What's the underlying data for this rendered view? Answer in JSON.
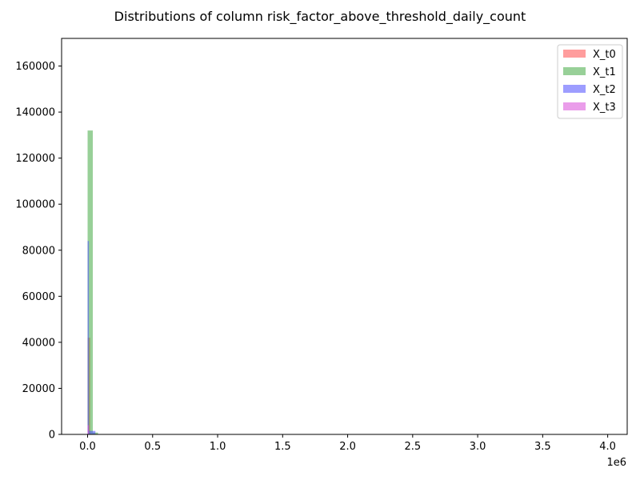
{
  "chart_data": {
    "type": "bar",
    "title": "Distributions of column risk_factor_above_threshold_daily_count",
    "xlabel": "",
    "ylabel": "",
    "x_multiplier_label": "1e6",
    "xlim": [
      -0.2,
      4.15
    ],
    "ylim": [
      0,
      172000
    ],
    "x_ticks": [
      0.0,
      0.5,
      1.0,
      1.5,
      2.0,
      2.5,
      3.0,
      3.5,
      4.0
    ],
    "x_tick_labels": [
      "0.0",
      "0.5",
      "1.0",
      "1.5",
      "2.0",
      "2.5",
      "3.0",
      "3.5",
      "4.0"
    ],
    "y_ticks": [
      0,
      20000,
      40000,
      60000,
      80000,
      100000,
      120000,
      140000,
      160000
    ],
    "y_tick_labels": [
      "0",
      "20000",
      "40000",
      "60000",
      "80000",
      "100000",
      "120000",
      "140000",
      "160000"
    ],
    "grid": false,
    "legend_position": "top-right",
    "series": [
      {
        "name": "X_t0",
        "color": "#ff4d4d",
        "bins": [
          [
            0.0,
            0.02,
            42000
          ]
        ]
      },
      {
        "name": "X_t1",
        "color": "#44aa44",
        "bins": [
          [
            0.0,
            0.04,
            132000
          ],
          [
            0.04,
            0.08,
            800
          ]
        ]
      },
      {
        "name": "X_t2",
        "color": "#4d4dff",
        "bins": [
          [
            0.0,
            0.01,
            84000
          ],
          [
            0.01,
            0.06,
            1500
          ]
        ]
      },
      {
        "name": "X_t3",
        "color": "#d94dd9",
        "bins": [
          [
            0.0,
            0.01,
            4000
          ]
        ]
      }
    ]
  }
}
